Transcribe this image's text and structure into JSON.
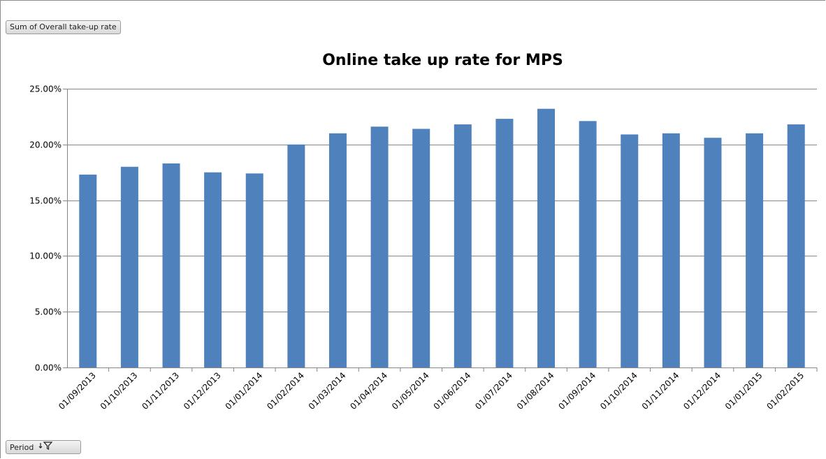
{
  "pivot": {
    "value_field_label": "Sum of Overall take-up rate",
    "axis_field_label": "Period"
  },
  "icons": {
    "axis_field_filter": "filter-funnel-icon"
  },
  "colors": {
    "bar": "#4f81bd",
    "gridline": "#868686",
    "axis": "#868686",
    "text": "#000000"
  },
  "chart_data": {
    "type": "bar",
    "title": "Online take up rate for MPS",
    "xlabel": "",
    "ylabel": "",
    "categories": [
      "01/09/2013",
      "01/10/2013",
      "01/11/2013",
      "01/12/2013",
      "01/01/2014",
      "01/02/2014",
      "01/03/2014",
      "01/04/2014",
      "01/05/2014",
      "01/06/2014",
      "01/07/2014",
      "01/08/2014",
      "01/09/2014",
      "01/10/2014",
      "01/11/2014",
      "01/12/2014",
      "01/01/2015",
      "01/02/2015"
    ],
    "values": [
      17.3,
      18.0,
      18.3,
      17.5,
      17.4,
      20.0,
      21.0,
      21.6,
      21.4,
      21.8,
      22.3,
      23.2,
      22.1,
      20.9,
      21.0,
      20.6,
      21.0,
      21.8
    ],
    "value_unit": "%",
    "ylim": [
      0,
      25
    ],
    "y_ticks": [
      "0.00%",
      "5.00%",
      "10.00%",
      "15.00%",
      "20.00%",
      "25.00%"
    ],
    "grid": true,
    "legend": "none"
  }
}
